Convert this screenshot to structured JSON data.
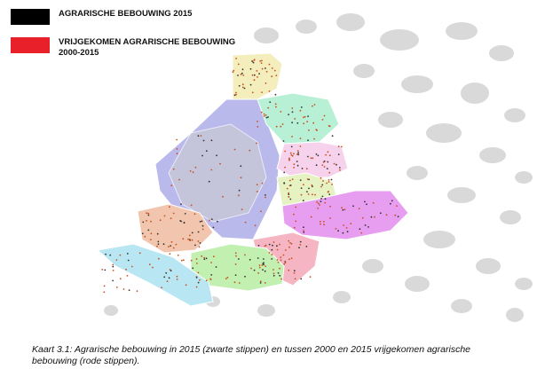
{
  "legend": [
    {
      "label": "AGRARISCHE BEBOUWING 2015",
      "color": "#000000"
    },
    {
      "label": "VRIJGEKOMEN AGRARISCHE BEBOUWING 2000-2015",
      "color": "#e8202a"
    }
  ],
  "caption": "Kaart 3.1: Agrarische bebouwing in 2015 (zwarte stippen) en tussen 2000 en 2015 vrijgekomen agrarische bebouwing (rode stippen)."
}
